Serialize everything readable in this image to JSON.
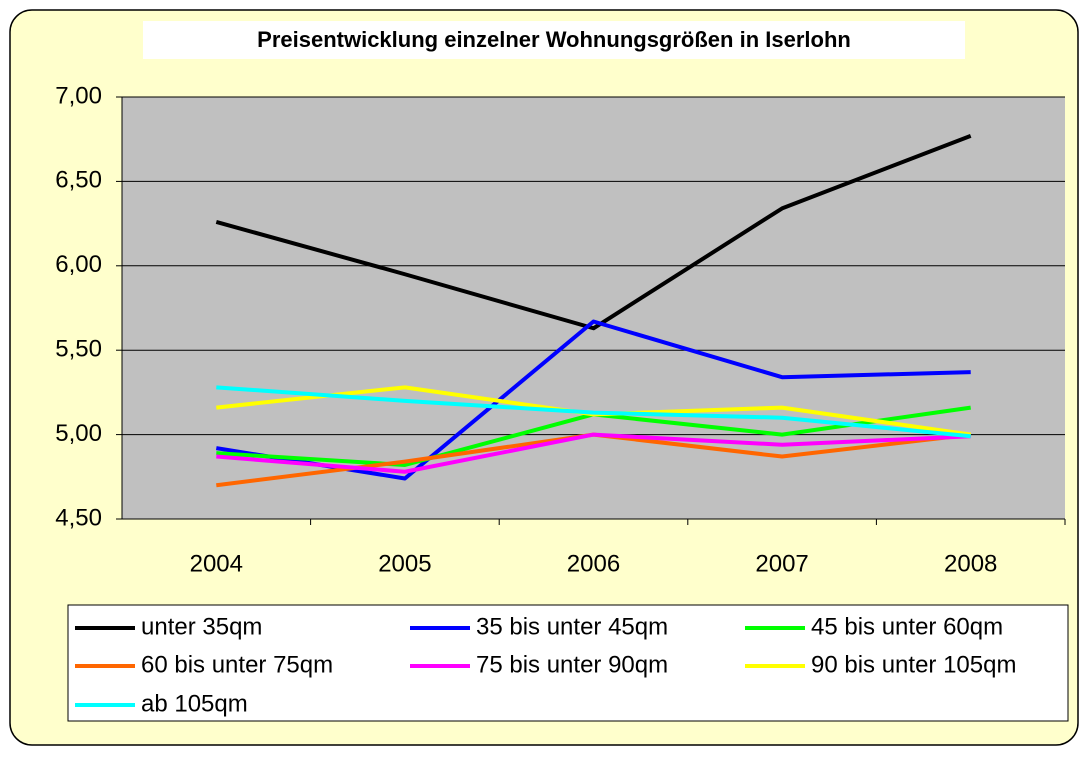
{
  "chart_data": {
    "type": "line",
    "title": "Preisentwicklung einzelner Wohnungsgrößen in Iserlohn",
    "categories": [
      "2004",
      "2005",
      "2006",
      "2007",
      "2008"
    ],
    "series": [
      {
        "name": "unter 35qm",
        "color": "#000000",
        "values": [
          6.26,
          5.95,
          5.63,
          6.34,
          6.77
        ]
      },
      {
        "name": "35 bis unter 45qm",
        "color": "#0000ff",
        "values": [
          4.92,
          4.74,
          5.67,
          5.34,
          5.37
        ]
      },
      {
        "name": "45 bis unter 60qm",
        "color": "#00ff00",
        "values": [
          4.89,
          4.82,
          5.12,
          5.0,
          5.16
        ]
      },
      {
        "name": "60 bis unter 75qm",
        "color": "#ff6600",
        "values": [
          4.7,
          4.84,
          5.0,
          4.87,
          5.0
        ]
      },
      {
        "name": "75 bis unter 90qm",
        "color": "#ff00ff",
        "values": [
          4.87,
          4.78,
          5.0,
          4.94,
          4.99
        ]
      },
      {
        "name": "90 bis unter 105qm",
        "color": "#ffff00",
        "values": [
          5.16,
          5.28,
          5.12,
          5.16,
          5.0
        ]
      },
      {
        "name": "ab 105qm",
        "color": "#00ffff",
        "values": [
          5.28,
          5.2,
          5.13,
          5.1,
          4.99
        ]
      }
    ],
    "ylim": [
      4.5,
      7.0
    ],
    "yticks": [
      {
        "value": 4.5,
        "label": "4,50"
      },
      {
        "value": 5.0,
        "label": "5,00"
      },
      {
        "value": 5.5,
        "label": "5,50"
      },
      {
        "value": 6.0,
        "label": "6,00"
      },
      {
        "value": 6.5,
        "label": "6,50"
      },
      {
        "value": 7.0,
        "label": "7,00"
      }
    ],
    "grid": true,
    "legend": "bottom"
  }
}
